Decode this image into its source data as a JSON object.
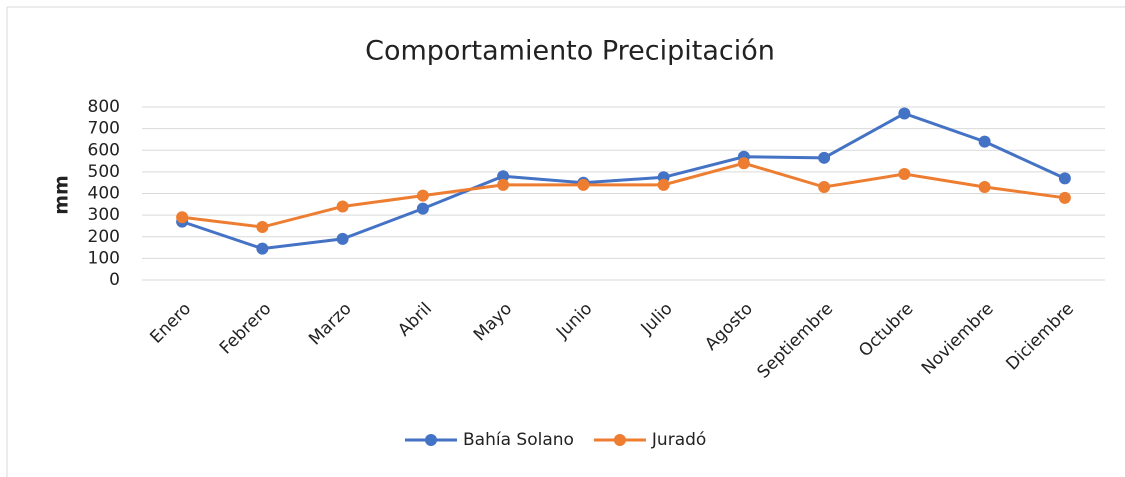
{
  "chart_data": {
    "type": "line",
    "title": "Comportamiento Precipitación",
    "y_label": "mm",
    "categories": [
      "Enero",
      "Febrero",
      "Marzo",
      "Abril",
      "Mayo",
      "Junio",
      "Julio",
      "Agosto",
      "Septiembre",
      "Octubre",
      "Noviembre",
      "Diciembre"
    ],
    "series": [
      {
        "name": "Bahía Solano",
        "color": "#4472c4",
        "values": [
          270,
          145,
          190,
          330,
          480,
          450,
          475,
          570,
          565,
          770,
          640,
          470
        ]
      },
      {
        "name": "Juradó",
        "color": "#ed7d31",
        "values": [
          290,
          245,
          340,
          390,
          440,
          440,
          440,
          540,
          430,
          490,
          430,
          380
        ]
      }
    ],
    "ylim": [
      0,
      800
    ],
    "yticks": [
      0,
      100,
      200,
      300,
      400,
      500,
      600,
      700,
      800
    ],
    "grid": true,
    "legend": "bottom"
  }
}
